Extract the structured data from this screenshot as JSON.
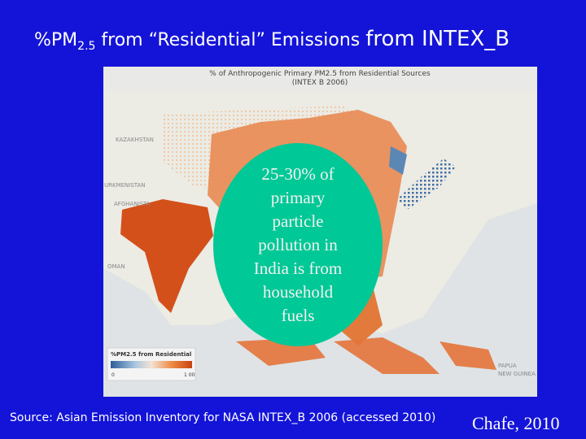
{
  "header": {
    "title_parts": [
      "%PM",
      "2.5",
      " from “Residential” Emissions ",
      "from INTEX_B"
    ]
  },
  "map": {
    "title": "% of Anthropogenic Primary PM2.5 from Residential Sources",
    "subtitle": "(INTEX B 2006)",
    "labels": [
      "KAZAKHSTAN",
      "URKMENISTAN",
      "AFGHANISTA",
      "OMAN",
      "PAPUA",
      "NEW GUINEA"
    ],
    "legend": {
      "title": "%PM2.5 from Residential",
      "min_label": "0",
      "max_label": "1 00"
    }
  },
  "callout": {
    "lines": [
      "25-30% of",
      "primary",
      "particle",
      "pollution in",
      "India is from",
      "household",
      "fuels"
    ]
  },
  "footer": {
    "source": "Source: Asian Emission Inventory for NASA INTEX_B 2006 (accessed 2010)",
    "credit": "Chafe, 2010"
  }
}
